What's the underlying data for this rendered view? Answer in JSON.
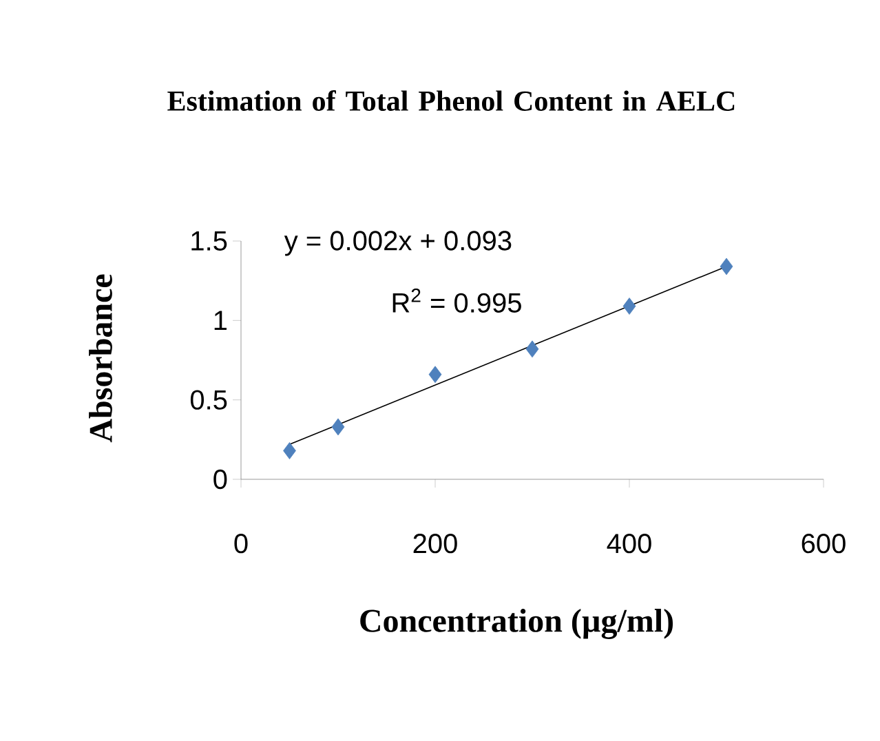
{
  "chart_data": {
    "type": "scatter",
    "title": "Estimation of Total Phenol Content in AELC",
    "xlabel": "Concentration (µg/ml)",
    "ylabel": "Absorbance",
    "xlim": [
      0,
      600
    ],
    "xticks": [
      0,
      200,
      400,
      600
    ],
    "ylim": [
      0,
      1.5
    ],
    "yticks": [
      0,
      0.5,
      1,
      1.5
    ],
    "grid": false,
    "marker": "diamond",
    "series": [
      {
        "color": "#4f81bd",
        "x": [
          50,
          100,
          200,
          300,
          400,
          500
        ],
        "values": [
          0.18,
          0.33,
          0.66,
          0.82,
          1.09,
          1.34
        ]
      },
      {
        "type": "line",
        "color": "#000000",
        "marker": "none",
        "line_style": "solid",
        "x": [
          50,
          500
        ],
        "values": [
          0.22,
          1.34
        ]
      }
    ],
    "annotations": [
      "y = 0.002x + 0.093",
      "R$^{2}$ = 0.995"
    ]
  }
}
